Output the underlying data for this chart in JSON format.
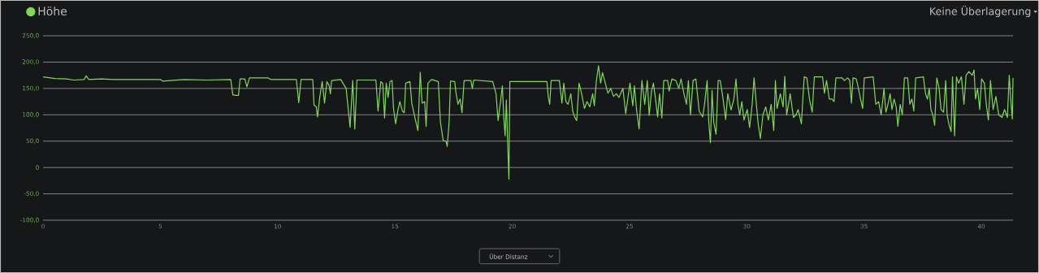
{
  "chart_data": {
    "type": "line",
    "x": [
      0,
      0.5,
      1,
      1.3,
      1.75,
      1.84,
      1.95,
      2.5,
      3,
      4,
      5,
      5.1,
      6,
      7,
      8,
      8.09,
      8.2,
      8.33,
      8.4,
      8.6,
      8.69,
      8.8,
      9.6,
      9.7,
      10.8,
      10.9,
      11.0,
      11.5,
      11.55,
      11.65,
      11.7,
      11.8,
      11.9,
      12.0,
      12.1,
      12.2,
      12.25,
      12.3,
      12.69,
      12.92,
      13.09,
      13.2,
      13.29,
      13.38,
      14.19,
      14.28,
      14.4,
      14.48,
      14.56,
      14.63,
      14.71,
      14.79,
      14.88,
      14.94,
      15.03,
      15.12,
      15.21,
      15.32,
      15.4,
      15.46,
      15.64,
      15.72,
      15.87,
      15.98,
      16.08,
      16.16,
      16.27,
      16.33,
      16.41,
      16.56,
      16.85,
      16.94,
      17.06,
      17.18,
      17.23,
      17.31,
      17.37,
      17.55,
      17.6,
      17.69,
      17.78,
      17.86,
      17.95,
      18.24,
      18.3,
      18.36,
      19.17,
      19.31,
      19.4,
      19.51,
      19.58,
      19.65,
      19.7,
      19.75,
      19.82,
      19.86,
      19.9,
      21.48,
      21.54,
      21.6,
      21.66,
      22.01,
      22.12,
      22.2,
      22.29,
      22.38,
      22.5,
      22.58,
      22.66,
      22.75,
      22.85,
      22.96,
      23.08,
      23.19,
      23.31,
      23.43,
      23.5,
      23.59,
      23.68,
      23.77,
      23.85,
      23.97,
      24.08,
      24.2,
      24.32,
      24.44,
      24.55,
      24.72,
      24.84,
      25.02,
      25.14,
      25.21,
      25.3,
      25.41,
      25.53,
      25.65,
      25.76,
      25.84,
      25.94,
      26.02,
      26.11,
      26.2,
      26.28,
      26.38,
      26.46,
      26.63,
      26.69,
      26.81,
      26.98,
      27.1,
      27.2,
      27.32,
      27.43,
      27.51,
      27.6,
      27.71,
      27.83,
      27.97,
      28.12,
      28.2,
      28.31,
      28.38,
      28.45,
      28.52,
      28.59,
      28.69,
      28.78,
      28.87,
      28.98,
      29.1,
      29.19,
      29.33,
      29.45,
      29.54,
      29.62,
      29.7,
      29.79,
      29.88,
      30.02,
      30.12,
      30.23,
      30.31,
      30.39,
      30.48,
      30.58,
      30.69,
      30.81,
      30.92,
      31.04,
      31.15,
      31.22,
      31.29,
      31.43,
      31.55,
      31.62,
      31.7,
      31.78,
      31.85,
      31.99,
      32.1,
      32.19,
      32.33,
      32.39,
      32.45,
      32.56,
      32.68,
      32.79,
      32.88,
      33.23,
      33.31,
      33.4,
      33.52,
      33.63,
      33.72,
      33.8,
      34.07,
      34.16,
      34.3,
      34.39,
      34.46,
      34.53,
      34.67,
      34.76,
      34.85,
      34.94,
      35.01,
      35.39,
      35.5,
      35.62,
      35.73,
      35.85,
      35.93,
      36.02,
      36.11,
      36.19,
      36.28,
      36.37,
      36.44,
      36.54,
      36.63,
      36.72,
      36.86,
      36.95,
      37.04,
      37.12,
      37.2,
      37.53,
      37.62,
      37.7,
      37.78,
      37.85,
      37.93,
      38.01,
      38.1,
      38.2,
      38.28,
      38.39,
      38.48,
      38.54,
      38.63,
      38.71,
      38.77,
      38.86,
      38.94,
      39.03,
      39.15,
      39.26,
      39.35,
      39.47,
      39.61,
      39.69,
      39.75,
      39.84,
      39.93,
      40.01,
      40.13,
      40.21,
      40.3,
      40.39,
      40.5,
      40.62,
      40.74,
      40.88,
      40.99,
      41.11,
      41.19,
      41.25,
      41.32,
      41.35
    ],
    "series": [
      {
        "name": "Höhe",
        "color": "#7fd957",
        "values": [
          172,
          169,
          168,
          166,
          167,
          174,
          167,
          168,
          167,
          167,
          167,
          164,
          167,
          166,
          167,
          138,
          137,
          137,
          168,
          168,
          153,
          170,
          170,
          167,
          167,
          123,
          167,
          167,
          118,
          115,
          96,
          135,
          163,
          122,
          163,
          155,
          140,
          165,
          167,
          150,
          76,
          165,
          73,
          166,
          166,
          107,
          163,
          160,
          94,
          160,
          133,
          163,
          165,
          112,
          83,
          107,
          125,
          107,
          104,
          160,
          163,
          122,
          91,
          70,
          181,
          122,
          125,
          78,
          160,
          167,
          163,
          86,
          51,
          50,
          40,
          86,
          164,
          163,
          143,
          120,
          130,
          104,
          165,
          165,
          150,
          166,
          163,
          140,
          89,
          128,
          155,
          89,
          60,
          128,
          29,
          -22,
          163,
          163,
          133,
          120,
          165,
          165,
          122,
          160,
          125,
          120,
          140,
          107,
          96,
          89,
          160,
          140,
          112,
          125,
          115,
          140,
          117,
          165,
          193,
          160,
          180,
          160,
          141,
          150,
          135,
          140,
          133,
          150,
          102,
          160,
          117,
          155,
          110,
          73,
          165,
          120,
          165,
          99,
          145,
          160,
          130,
          96,
          140,
          94,
          165,
          165,
          145,
          168,
          165,
          150,
          168,
          140,
          120,
          165,
          100,
          165,
          168,
          107,
          96,
          120,
          165,
          86,
          47,
          146,
          86,
          63,
          165,
          165,
          133,
          91,
          140,
          109,
          130,
          168,
          120,
          100,
          125,
          90,
          110,
          76,
          120,
          170,
          130,
          85,
          55,
          100,
          115,
          90,
          120,
          70,
          165,
          112,
          140,
          115,
          173,
          100,
          120,
          140,
          95,
          100,
          110,
          83,
          130,
          172,
          170,
          128,
          105,
          172,
          172,
          141,
          165,
          130,
          130,
          125,
          170,
          170,
          165,
          170,
          165,
          122,
          170,
          168,
          150,
          130,
          112,
          170,
          172,
          120,
          125,
          100,
          150,
          105,
          120,
          140,
          110,
          130,
          115,
          78,
          120,
          100,
          170,
          170,
          120,
          130,
          107,
          170,
          172,
          140,
          130,
          150,
          110,
          100,
          80,
          170,
          150,
          110,
          105,
          165,
          100,
          80,
          68,
          172,
          60,
          172,
          160,
          172,
          120,
          175,
          182,
          175,
          185,
          130,
          150,
          110,
          168,
          160,
          120,
          90,
          165,
          110,
          135,
          100,
          95,
          110,
          95,
          175,
          130,
          92,
          170
        ]
      }
    ],
    "xlim": [
      0,
      41.35
    ],
    "ylim": [
      -100,
      250
    ],
    "xticks": [
      0,
      5,
      10,
      15,
      20,
      25,
      30,
      35,
      40
    ],
    "yticks": [
      {
        "value": -100,
        "label": "-100,0"
      },
      {
        "value": -50,
        "label": "-50,0"
      },
      0,
      {
        "value": 50,
        "label": "50,0"
      },
      {
        "value": 100,
        "label": "100,0"
      },
      {
        "value": 150,
        "label": "150,0"
      },
      {
        "value": 200,
        "label": "200,0"
      },
      {
        "value": 250,
        "label": "250,0"
      }
    ],
    "grid": "y",
    "legend": "top left",
    "marker": "none",
    "line_style": "solid",
    "annotations": [
      "Keine Überlagerung",
      "Über Distanz"
    ]
  }
}
